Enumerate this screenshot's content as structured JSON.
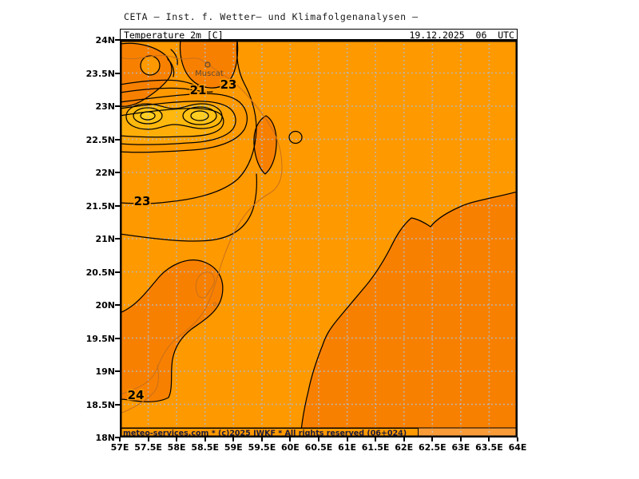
{
  "title": "CETA — Inst. f. Wetter— und Klimafolgenanalysen —",
  "panel": {
    "variable": "Temperature_2m_[C]",
    "datetime": "19.12.2025  06  UTC"
  },
  "axes": {
    "lat": [
      "24N",
      "23.5N",
      "23N",
      "22.5N",
      "22N",
      "21.5N",
      "21N",
      "20.5N",
      "20N",
      "19.5N",
      "19N",
      "18.5N",
      "18N"
    ],
    "lon": [
      "57E",
      "57.5E",
      "58E",
      "58.5E",
      "59E",
      "59.5E",
      "60E",
      "60.5E",
      "61E",
      "61.5E",
      "62E",
      "62.5E",
      "63E",
      "63.5E",
      "64E"
    ]
  },
  "map": {
    "city": {
      "name": "Muscat"
    },
    "contour_labels": [
      {
        "value": "21"
      },
      {
        "value": "23"
      },
      {
        "value": "23"
      },
      {
        "value": "24"
      }
    ],
    "attribution": "meteo-services.com * (c)2025 IWKF * All rights reserved (06+024)"
  },
  "colors": {
    "base_fill": "#FF9900",
    "warm_fill": "#F88000",
    "band1": "#FFA405",
    "band2": "#FFAE09",
    "band3": "#FFB80E",
    "band4": "#FFC215",
    "core": "#FFCE22",
    "grid": "#B4B8BC",
    "contour": "#000000",
    "coastline": "#C7701D"
  },
  "chart_data": {
    "type": "contour_map",
    "variable": "Temperature 2m [C]",
    "valid_time": "19.12.2025 06 UTC",
    "lon_range_deg_e": [
      57,
      64
    ],
    "lat_range_deg_n": [
      18,
      24
    ],
    "grid_interval_deg": 0.5,
    "labeled_contours_c": [
      21,
      23,
      24
    ],
    "shading": "warmer (>24C) dark orange southeast of diagonal contour and in local warm blobs; cool pocket (~19-21C, yellow cores) around 57.3-58.7E / 22.7-23.1N",
    "features": [
      {
        "name": "Muscat",
        "kind": "city marker",
        "approx_lon_e": 58.55,
        "approx_lat_n": 23.6
      }
    ]
  }
}
